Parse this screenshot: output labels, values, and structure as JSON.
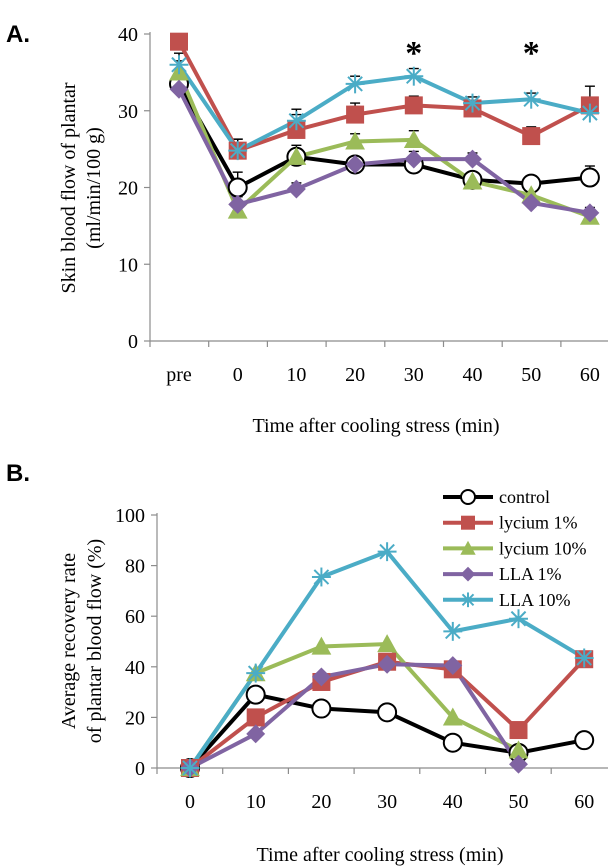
{
  "chart_data": [
    {
      "panel_label": "A.",
      "type": "line",
      "xlabel": "Time after cooling stress (min)",
      "ylabel_lines": [
        "Skin blood flow  of plantar",
        "(ml/min/100 g)"
      ],
      "categories": [
        "pre",
        "0",
        "10",
        "20",
        "30",
        "40",
        "50",
        "60"
      ],
      "ylim": [
        0,
        40
      ],
      "yticks": [
        "0",
        "10",
        "20",
        "30",
        "40"
      ],
      "grid": false,
      "legend": "none",
      "annotations": [
        {
          "text": "*",
          "category": "30"
        },
        {
          "text": "*",
          "category": "50"
        }
      ],
      "series": [
        {
          "name": "control",
          "color": "#000000",
          "marker": "circle-open",
          "values": [
            33.5,
            20.0,
            24.0,
            23.0,
            23.0,
            21.0,
            20.5,
            21.3
          ],
          "errors": [
            1.0,
            2.0,
            1.5,
            0.7,
            1.0,
            0.8,
            1.0,
            1.5
          ]
        },
        {
          "name": "lycium 1%",
          "color": "#c0504d",
          "marker": "square",
          "values": [
            39.0,
            24.8,
            27.5,
            29.5,
            30.7,
            30.3,
            26.7,
            30.7
          ],
          "errors": [
            0.5,
            1.5,
            2.0,
            1.5,
            1.2,
            1.0,
            1.2,
            2.5
          ]
        },
        {
          "name": "lycium 10%",
          "color": "#9bbb59",
          "marker": "triangle",
          "values": [
            35.0,
            17.0,
            24.0,
            26.0,
            26.2,
            20.8,
            19.0,
            16.2
          ],
          "errors": [
            1.5,
            1.0,
            1.0,
            1.0,
            1.2,
            1.0,
            0.7,
            0.8
          ]
        },
        {
          "name": "LLA 1%",
          "color": "#8064a2",
          "marker": "diamond",
          "values": [
            32.8,
            17.8,
            19.8,
            23.0,
            23.7,
            23.7,
            18.0,
            16.7
          ],
          "errors": [
            1.0,
            1.0,
            0.8,
            0.8,
            1.0,
            0.8,
            0.7,
            0.7
          ]
        },
        {
          "name": "LLA 10%",
          "color": "#4bacc6",
          "marker": "asterisk",
          "values": [
            36.0,
            24.8,
            28.7,
            33.5,
            34.5,
            31.0,
            31.5,
            29.7
          ],
          "errors": [
            1.5,
            1.5,
            1.5,
            1.0,
            1.0,
            0.8,
            0.8,
            1.0
          ]
        }
      ]
    },
    {
      "panel_label": "B.",
      "type": "line",
      "xlabel": "Time after cooling stress (min)",
      "ylabel_lines": [
        "Average recovery rate",
        "of plantar blood flow (%)"
      ],
      "categories": [
        "0",
        "10",
        "20",
        "30",
        "40",
        "50",
        "60"
      ],
      "ylim": [
        0,
        100
      ],
      "yticks": [
        "0",
        "20",
        "40",
        "60",
        "80",
        "100"
      ],
      "grid": false,
      "legend": "top-right",
      "series": [
        {
          "name": "control",
          "color": "#000000",
          "marker": "circle-open",
          "values": [
            0,
            29,
            23.5,
            22,
            10,
            6,
            11
          ]
        },
        {
          "name": "lycium 1%",
          "color": "#c0504d",
          "marker": "square",
          "values": [
            0,
            20,
            34,
            42,
            39,
            15,
            43
          ]
        },
        {
          "name": "lycium 10%",
          "color": "#9bbb59",
          "marker": "triangle",
          "values": [
            0,
            37.5,
            48,
            49,
            20,
            7,
            null
          ]
        },
        {
          "name": "LLA 1%",
          "color": "#8064a2",
          "marker": "diamond",
          "values": [
            0,
            13.5,
            36,
            41,
            40.5,
            1.5,
            null
          ]
        },
        {
          "name": "LLA 10%",
          "color": "#4bacc6",
          "marker": "asterisk",
          "values": [
            0,
            37.5,
            75.5,
            85.5,
            54,
            59,
            43.5
          ]
        }
      ]
    }
  ]
}
